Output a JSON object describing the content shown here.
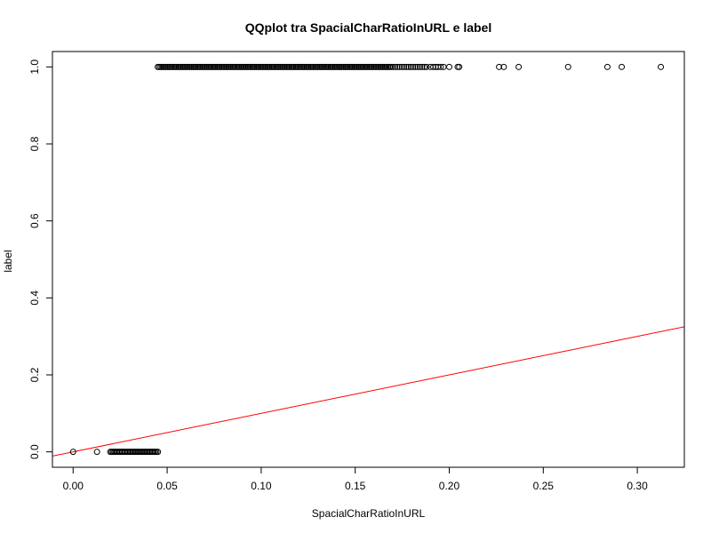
{
  "chart_data": {
    "type": "scatter",
    "title": "QQplot tra SpacialCharRatioInURL e label",
    "xlabel": "SpacialCharRatioInURL",
    "ylabel": "label",
    "xlim": [
      -0.011,
      0.325
    ],
    "ylim": [
      -0.04,
      1.04
    ],
    "x_ticks": [
      "0.00",
      "0.05",
      "0.10",
      "0.15",
      "0.20",
      "0.25",
      "0.30"
    ],
    "y_ticks": [
      "0.0",
      "0.2",
      "0.4",
      "0.6",
      "0.8",
      "1.0"
    ],
    "grid": false,
    "legend": "none",
    "series": [
      {
        "marker": "open-circle",
        "color": "#000000",
        "points": [
          [
            0.0,
            0
          ],
          [
            0.0127,
            0
          ],
          [
            0.0198,
            0
          ],
          [
            0.0205,
            0
          ],
          [
            0.0212,
            0
          ],
          [
            0.0219,
            0
          ],
          [
            0.0226,
            0
          ],
          [
            0.0233,
            0
          ],
          [
            0.024,
            0
          ],
          [
            0.0247,
            0
          ],
          [
            0.0254,
            0
          ],
          [
            0.0261,
            0
          ],
          [
            0.0268,
            0
          ],
          [
            0.0275,
            0
          ],
          [
            0.0282,
            0
          ],
          [
            0.0289,
            0
          ],
          [
            0.0296,
            0
          ],
          [
            0.0303,
            0
          ],
          [
            0.031,
            0
          ],
          [
            0.0317,
            0
          ],
          [
            0.0324,
            0
          ],
          [
            0.0331,
            0
          ],
          [
            0.0338,
            0
          ],
          [
            0.0345,
            0
          ],
          [
            0.0352,
            0
          ],
          [
            0.0359,
            0
          ],
          [
            0.0366,
            0
          ],
          [
            0.0373,
            0
          ],
          [
            0.038,
            0
          ],
          [
            0.0387,
            0
          ],
          [
            0.0394,
            0
          ],
          [
            0.0401,
            0
          ],
          [
            0.0408,
            0
          ],
          [
            0.0415,
            0
          ],
          [
            0.0422,
            0
          ],
          [
            0.0429,
            0
          ],
          [
            0.0436,
            0
          ],
          [
            0.0443,
            0
          ],
          [
            0.0451,
            0
          ],
          [
            0.045,
            1
          ],
          [
            0.0458,
            1
          ],
          [
            0.0466,
            1
          ],
          [
            0.0474,
            1
          ],
          [
            0.0482,
            1
          ],
          [
            0.049,
            1
          ],
          [
            0.0498,
            1
          ],
          [
            0.0506,
            1
          ],
          [
            0.0514,
            1
          ],
          [
            0.0522,
            1
          ],
          [
            0.053,
            1
          ],
          [
            0.0538,
            1
          ],
          [
            0.0546,
            1
          ],
          [
            0.0554,
            1
          ],
          [
            0.0562,
            1
          ],
          [
            0.057,
            1
          ],
          [
            0.0578,
            1
          ],
          [
            0.0586,
            1
          ],
          [
            0.0594,
            1
          ],
          [
            0.0602,
            1
          ],
          [
            0.061,
            1
          ],
          [
            0.0618,
            1
          ],
          [
            0.0626,
            1
          ],
          [
            0.0634,
            1
          ],
          [
            0.0642,
            1
          ],
          [
            0.065,
            1
          ],
          [
            0.0658,
            1
          ],
          [
            0.0666,
            1
          ],
          [
            0.0674,
            1
          ],
          [
            0.0682,
            1
          ],
          [
            0.069,
            1
          ],
          [
            0.0698,
            1
          ],
          [
            0.0706,
            1
          ],
          [
            0.0714,
            1
          ],
          [
            0.0722,
            1
          ],
          [
            0.073,
            1
          ],
          [
            0.0738,
            1
          ],
          [
            0.0746,
            1
          ],
          [
            0.0754,
            1
          ],
          [
            0.0762,
            1
          ],
          [
            0.077,
            1
          ],
          [
            0.0778,
            1
          ],
          [
            0.0786,
            1
          ],
          [
            0.0794,
            1
          ],
          [
            0.0802,
            1
          ],
          [
            0.081,
            1
          ],
          [
            0.0818,
            1
          ],
          [
            0.0826,
            1
          ],
          [
            0.0834,
            1
          ],
          [
            0.0842,
            1
          ],
          [
            0.085,
            1
          ],
          [
            0.0858,
            1
          ],
          [
            0.0866,
            1
          ],
          [
            0.0874,
            1
          ],
          [
            0.0882,
            1
          ],
          [
            0.089,
            1
          ],
          [
            0.0898,
            1
          ],
          [
            0.0906,
            1
          ],
          [
            0.0914,
            1
          ],
          [
            0.0922,
            1
          ],
          [
            0.093,
            1
          ],
          [
            0.0938,
            1
          ],
          [
            0.0946,
            1
          ],
          [
            0.0954,
            1
          ],
          [
            0.0962,
            1
          ],
          [
            0.097,
            1
          ],
          [
            0.0978,
            1
          ],
          [
            0.0986,
            1
          ],
          [
            0.0994,
            1
          ],
          [
            0.1002,
            1
          ],
          [
            0.101,
            1
          ],
          [
            0.1018,
            1
          ],
          [
            0.1026,
            1
          ],
          [
            0.1034,
            1
          ],
          [
            0.1042,
            1
          ],
          [
            0.105,
            1
          ],
          [
            0.1058,
            1
          ],
          [
            0.1066,
            1
          ],
          [
            0.1074,
            1
          ],
          [
            0.1082,
            1
          ],
          [
            0.109,
            1
          ],
          [
            0.1098,
            1
          ],
          [
            0.1106,
            1
          ],
          [
            0.1114,
            1
          ],
          [
            0.1122,
            1
          ],
          [
            0.113,
            1
          ],
          [
            0.1138,
            1
          ],
          [
            0.1146,
            1
          ],
          [
            0.1154,
            1
          ],
          [
            0.1162,
            1
          ],
          [
            0.117,
            1
          ],
          [
            0.1178,
            1
          ],
          [
            0.1186,
            1
          ],
          [
            0.1194,
            1
          ],
          [
            0.1202,
            1
          ],
          [
            0.121,
            1
          ],
          [
            0.1218,
            1
          ],
          [
            0.1226,
            1
          ],
          [
            0.1234,
            1
          ],
          [
            0.1242,
            1
          ],
          [
            0.125,
            1
          ],
          [
            0.1258,
            1
          ],
          [
            0.1266,
            1
          ],
          [
            0.1274,
            1
          ],
          [
            0.1282,
            1
          ],
          [
            0.129,
            1
          ],
          [
            0.1298,
            1
          ],
          [
            0.1306,
            1
          ],
          [
            0.1314,
            1
          ],
          [
            0.1322,
            1
          ],
          [
            0.133,
            1
          ],
          [
            0.1338,
            1
          ],
          [
            0.1346,
            1
          ],
          [
            0.1354,
            1
          ],
          [
            0.1362,
            1
          ],
          [
            0.137,
            1
          ],
          [
            0.1378,
            1
          ],
          [
            0.1386,
            1
          ],
          [
            0.1394,
            1
          ],
          [
            0.1402,
            1
          ],
          [
            0.141,
            1
          ],
          [
            0.1418,
            1
          ],
          [
            0.1426,
            1
          ],
          [
            0.1434,
            1
          ],
          [
            0.1442,
            1
          ],
          [
            0.145,
            1
          ],
          [
            0.1458,
            1
          ],
          [
            0.1466,
            1
          ],
          [
            0.1474,
            1
          ],
          [
            0.1482,
            1
          ],
          [
            0.149,
            1
          ],
          [
            0.1498,
            1
          ],
          [
            0.1506,
            1
          ],
          [
            0.1514,
            1
          ],
          [
            0.1522,
            1
          ],
          [
            0.153,
            1
          ],
          [
            0.1538,
            1
          ],
          [
            0.1546,
            1
          ],
          [
            0.1554,
            1
          ],
          [
            0.1562,
            1
          ],
          [
            0.157,
            1
          ],
          [
            0.1578,
            1
          ],
          [
            0.1586,
            1
          ],
          [
            0.1594,
            1
          ],
          [
            0.1602,
            1
          ],
          [
            0.161,
            1
          ],
          [
            0.1618,
            1
          ],
          [
            0.1626,
            1
          ],
          [
            0.1634,
            1
          ],
          [
            0.1642,
            1
          ],
          [
            0.165,
            1
          ],
          [
            0.1658,
            1
          ],
          [
            0.1666,
            1
          ],
          [
            0.1674,
            1
          ],
          [
            0.1682,
            1
          ],
          [
            0.169,
            1
          ],
          [
            0.17,
            1
          ],
          [
            0.1712,
            1
          ],
          [
            0.1724,
            1
          ],
          [
            0.1736,
            1
          ],
          [
            0.1748,
            1
          ],
          [
            0.176,
            1
          ],
          [
            0.1772,
            1
          ],
          [
            0.1784,
            1
          ],
          [
            0.1796,
            1
          ],
          [
            0.1808,
            1
          ],
          [
            0.182,
            1
          ],
          [
            0.1832,
            1
          ],
          [
            0.1844,
            1
          ],
          [
            0.1856,
            1
          ],
          [
            0.1868,
            1
          ],
          [
            0.188,
            1
          ],
          [
            0.19,
            1
          ],
          [
            0.1915,
            1
          ],
          [
            0.1928,
            1
          ],
          [
            0.194,
            1
          ],
          [
            0.1955,
            1
          ],
          [
            0.197,
            1
          ],
          [
            0.2,
            1
          ],
          [
            0.2045,
            1
          ],
          [
            0.2053,
            1
          ],
          [
            0.2265,
            1
          ],
          [
            0.229,
            1
          ],
          [
            0.2369,
            1
          ],
          [
            0.2632,
            1
          ],
          [
            0.2841,
            1
          ],
          [
            0.2917,
            1
          ],
          [
            0.3125,
            1
          ]
        ]
      }
    ],
    "reference_line": {
      "color": "#ff0000",
      "points": [
        [
          -0.011,
          -0.011
        ],
        [
          0.325,
          0.325
        ]
      ]
    }
  }
}
